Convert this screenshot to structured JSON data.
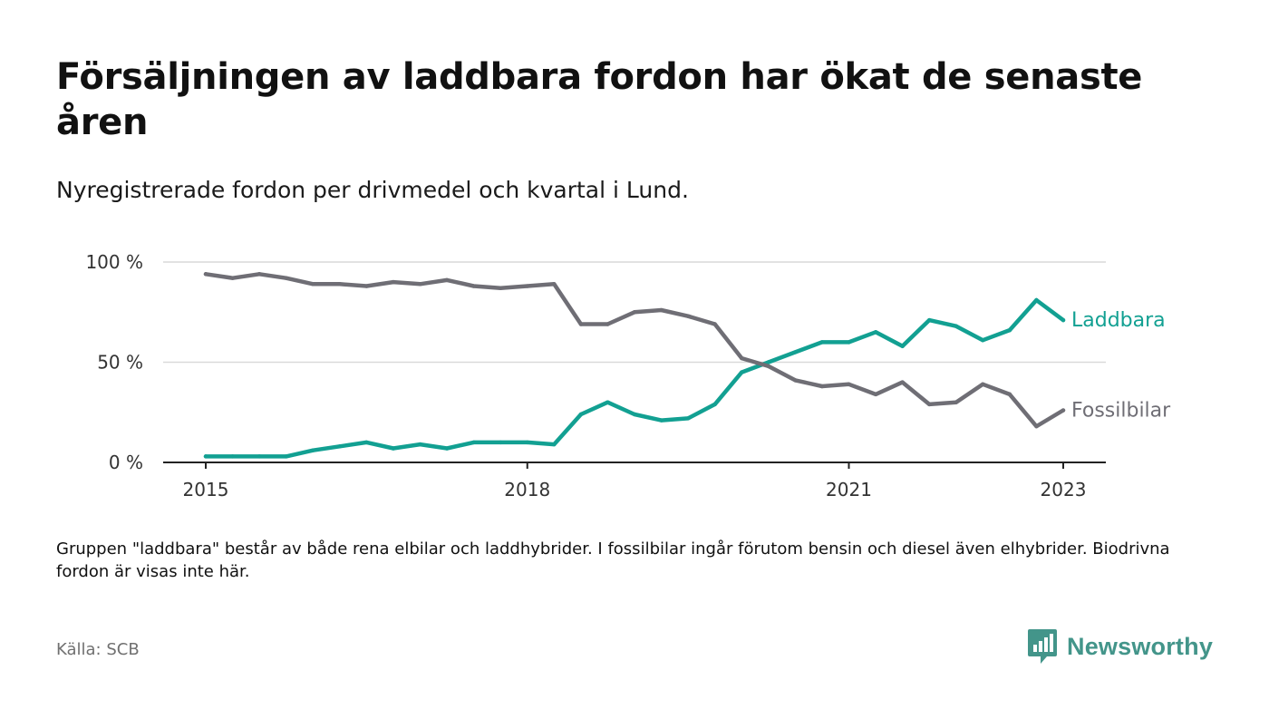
{
  "header": {
    "title": "Försäljningen av laddbara fordon har ökat de senaste åren",
    "subtitle": "Nyregistrerade fordon per drivmedel och kvartal i Lund."
  },
  "footer": {
    "note": "Gruppen \"laddbara\" består av både rena elbilar och laddhybrider. I fossilbilar ingår förutom bensin och diesel även elhybrider. Biodrivna fordon är visas inte här.",
    "source": "Källa: SCB",
    "brand": "Newsworthy",
    "brand_icon": "bar-chart-speech-bubble-icon",
    "brand_color": "#43958a"
  },
  "chart_data": {
    "type": "line",
    "title": "Försäljningen av laddbara fordon har ökat de senaste åren",
    "subtitle": "Nyregistrerade fordon per drivmedel och kvartal i Lund.",
    "xlabel": "",
    "ylabel": "",
    "x": [
      "2015Q1",
      "2015Q2",
      "2015Q3",
      "2015Q4",
      "2016Q1",
      "2016Q2",
      "2016Q3",
      "2016Q4",
      "2017Q1",
      "2017Q2",
      "2017Q3",
      "2017Q4",
      "2018Q1",
      "2018Q2",
      "2018Q3",
      "2018Q4",
      "2019Q1",
      "2019Q2",
      "2019Q3",
      "2019Q4",
      "2020Q1",
      "2020Q2",
      "2020Q3",
      "2020Q4",
      "2021Q1",
      "2021Q2",
      "2021Q3",
      "2021Q4",
      "2022Q1",
      "2022Q2",
      "2022Q3",
      "2022Q4",
      "2023Q1"
    ],
    "x_ticks": [
      {
        "x": "2015Q1",
        "label": "2015"
      },
      {
        "x": "2018Q1",
        "label": "2018"
      },
      {
        "x": "2021Q1",
        "label": "2021"
      },
      {
        "x": "2023Q1",
        "label": "2023"
      }
    ],
    "ylim": [
      0,
      100
    ],
    "y_ticks": [
      {
        "value": 0,
        "label": "0 %"
      },
      {
        "value": 50,
        "label": "50 %"
      },
      {
        "value": 100,
        "label": "100 %"
      }
    ],
    "grid": true,
    "legend": "direct labels at line ends",
    "series": [
      {
        "name": "Laddbara",
        "color": "#12a092",
        "values": [
          3,
          3,
          3,
          3,
          6,
          8,
          10,
          7,
          9,
          7,
          10,
          10,
          10,
          9,
          24,
          30,
          24,
          21,
          22,
          29,
          45,
          50,
          55,
          60,
          60,
          65,
          58,
          71,
          68,
          61,
          66,
          81,
          71
        ]
      },
      {
        "name": "Fossilbilar",
        "color": "#6f6e75",
        "values": [
          94,
          92,
          94,
          92,
          89,
          89,
          88,
          90,
          89,
          91,
          88,
          87,
          88,
          89,
          69,
          69,
          75,
          76,
          73,
          69,
          52,
          48,
          41,
          38,
          39,
          34,
          40,
          29,
          30,
          39,
          34,
          18,
          26
        ]
      }
    ]
  }
}
